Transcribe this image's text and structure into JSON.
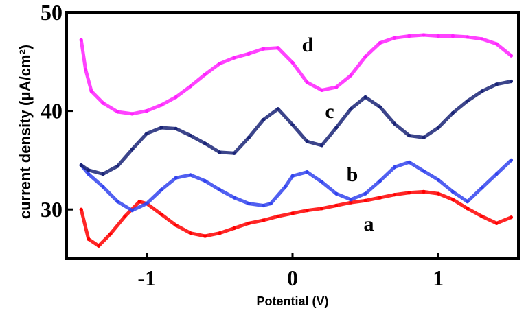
{
  "chart_data": {
    "type": "scatter",
    "title": "",
    "xlabel": "Potential (V)",
    "ylabel": "current density (μA/cm²)",
    "xlim": [
      -1.55,
      1.55
    ],
    "ylim": [
      25,
      50
    ],
    "x_ticks": [
      -1,
      0,
      1
    ],
    "x_tick_labels": [
      "-1",
      "0",
      "1"
    ],
    "y_ticks": [
      30,
      40,
      50
    ],
    "y_tick_labels": [
      "30",
      "40",
      "50"
    ],
    "grid": false,
    "legend": "none",
    "series": [
      {
        "name": "a",
        "color": "#ff0000",
        "x": [
          -1.45,
          -1.4,
          -1.33,
          -1.25,
          -1.15,
          -1.05,
          -1.0,
          -0.9,
          -0.8,
          -0.7,
          -0.6,
          -0.5,
          -0.4,
          -0.3,
          -0.2,
          -0.1,
          0.0,
          0.1,
          0.2,
          0.3,
          0.4,
          0.5,
          0.6,
          0.7,
          0.8,
          0.9,
          1.0,
          1.1,
          1.2,
          1.3,
          1.4,
          1.5
        ],
        "y": [
          30.0,
          27.0,
          26.3,
          27.5,
          29.3,
          30.8,
          30.6,
          29.5,
          28.4,
          27.6,
          27.3,
          27.6,
          28.1,
          28.6,
          28.9,
          29.3,
          29.6,
          29.9,
          30.1,
          30.4,
          30.7,
          30.9,
          31.2,
          31.5,
          31.7,
          31.8,
          31.6,
          31.0,
          30.1,
          29.3,
          28.6,
          29.2
        ]
      },
      {
        "name": "b",
        "color": "#3344ee",
        "x": [
          -1.45,
          -1.4,
          -1.3,
          -1.2,
          -1.1,
          -1.0,
          -0.9,
          -0.8,
          -0.7,
          -0.6,
          -0.5,
          -0.4,
          -0.3,
          -0.2,
          -0.15,
          -0.05,
          0.0,
          0.1,
          0.2,
          0.3,
          0.4,
          0.5,
          0.6,
          0.7,
          0.8,
          0.9,
          1.0,
          1.1,
          1.2,
          1.3,
          1.4,
          1.5
        ],
        "y": [
          34.5,
          33.6,
          32.3,
          30.8,
          29.9,
          30.6,
          32.0,
          33.2,
          33.5,
          32.9,
          32.0,
          31.2,
          30.6,
          30.4,
          30.6,
          32.3,
          33.4,
          33.8,
          32.8,
          31.6,
          31.0,
          31.6,
          32.9,
          34.3,
          34.8,
          33.9,
          33.0,
          31.8,
          30.8,
          32.2,
          33.6,
          35.0
        ]
      },
      {
        "name": "c",
        "color": "#1a2477",
        "x": [
          -1.45,
          -1.4,
          -1.3,
          -1.2,
          -1.1,
          -1.0,
          -0.9,
          -0.8,
          -0.7,
          -0.6,
          -0.5,
          -0.4,
          -0.3,
          -0.2,
          -0.1,
          0.0,
          0.1,
          0.2,
          0.3,
          0.4,
          0.5,
          0.6,
          0.7,
          0.8,
          0.9,
          1.0,
          1.1,
          1.2,
          1.3,
          1.4,
          1.5
        ],
        "y": [
          34.5,
          34.0,
          33.6,
          34.4,
          36.1,
          37.7,
          38.3,
          38.2,
          37.5,
          36.7,
          35.8,
          35.7,
          37.3,
          39.1,
          40.2,
          38.6,
          36.9,
          36.5,
          38.3,
          40.2,
          41.4,
          40.4,
          38.7,
          37.5,
          37.3,
          38.3,
          39.8,
          41.0,
          42.0,
          42.7,
          43.0
        ]
      },
      {
        "name": "d",
        "color": "#ff22ff",
        "x": [
          -1.45,
          -1.42,
          -1.38,
          -1.3,
          -1.2,
          -1.1,
          -1.0,
          -0.9,
          -0.8,
          -0.7,
          -0.6,
          -0.5,
          -0.4,
          -0.3,
          -0.2,
          -0.1,
          0.0,
          0.1,
          0.2,
          0.3,
          0.4,
          0.5,
          0.6,
          0.7,
          0.8,
          0.9,
          1.0,
          1.1,
          1.2,
          1.3,
          1.4,
          1.5
        ],
        "y": [
          47.2,
          44.2,
          42.0,
          40.8,
          39.9,
          39.7,
          40.0,
          40.6,
          41.4,
          42.5,
          43.7,
          44.8,
          45.4,
          45.8,
          46.3,
          46.4,
          44.9,
          42.9,
          42.1,
          42.4,
          43.6,
          45.5,
          46.9,
          47.4,
          47.6,
          47.7,
          47.6,
          47.6,
          47.5,
          47.3,
          46.8,
          45.6
        ]
      }
    ]
  }
}
